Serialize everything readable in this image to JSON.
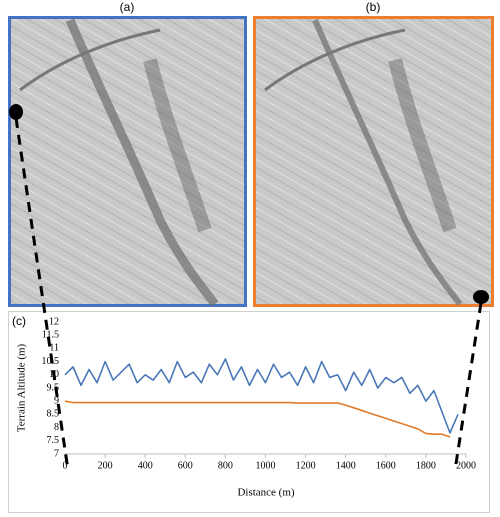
{
  "panel_labels": [
    "(a)",
    "(b)",
    "(c)"
  ],
  "chart_data": {
    "type": "line",
    "ylabel": "Terrain Altitude (m)",
    "xlabel": "Distance (m)",
    "x": [
      0,
      40,
      80,
      120,
      160,
      200,
      240,
      280,
      320,
      360,
      400,
      440,
      480,
      520,
      560,
      600,
      640,
      680,
      720,
      760,
      800,
      840,
      880,
      920,
      960,
      1000,
      1040,
      1080,
      1120,
      1160,
      1200,
      1240,
      1280,
      1320,
      1360,
      1400,
      1440,
      1480,
      1520,
      1560,
      1600,
      1640,
      1680,
      1720,
      1760,
      1800,
      1840,
      1880,
      1920,
      1960
    ],
    "series": [
      {
        "color": "#4a78b8",
        "values": [
          10.0,
          10.3,
          9.6,
          10.2,
          9.7,
          10.5,
          9.8,
          10.1,
          10.4,
          9.7,
          10.0,
          9.8,
          10.2,
          9.7,
          10.5,
          9.9,
          10.1,
          9.7,
          10.4,
          10.0,
          10.6,
          9.8,
          10.3,
          9.6,
          10.2,
          9.7,
          10.4,
          9.9,
          10.1,
          9.6,
          10.3,
          9.7,
          10.5,
          9.9,
          10.0,
          9.4,
          10.1,
          9.6,
          10.2,
          9.5,
          9.9,
          9.7,
          9.9,
          9.3,
          9.6,
          9.0,
          9.4,
          8.6,
          7.8,
          8.5
        ]
      },
      {
        "color": "#e07b2a",
        "values": [
          9.0,
          8.95,
          8.95,
          8.95,
          8.95,
          8.95,
          8.95,
          8.95,
          8.95,
          8.95,
          8.95,
          8.95,
          8.95,
          8.95,
          8.95,
          8.95,
          8.95,
          8.95,
          8.95,
          8.95,
          8.95,
          8.95,
          8.95,
          8.95,
          8.95,
          8.95,
          8.95,
          8.95,
          8.95,
          8.93,
          8.93,
          8.93,
          8.93,
          8.93,
          8.93,
          8.85,
          8.75,
          8.65,
          8.55,
          8.45,
          8.35,
          8.25,
          8.15,
          8.05,
          7.95,
          7.78,
          7.75,
          7.75,
          7.65,
          null
        ]
      }
    ],
    "xlim": [
      0,
      2000
    ],
    "xticks": [
      0,
      200,
      400,
      600,
      800,
      1000,
      1200,
      1400,
      1600,
      1800,
      2000
    ],
    "ylim": [
      7,
      12
    ],
    "yticks": [
      7,
      7.5,
      8,
      8.5,
      9,
      9.5,
      10,
      10.5,
      11,
      11.5,
      12
    ],
    "grid": false
  }
}
